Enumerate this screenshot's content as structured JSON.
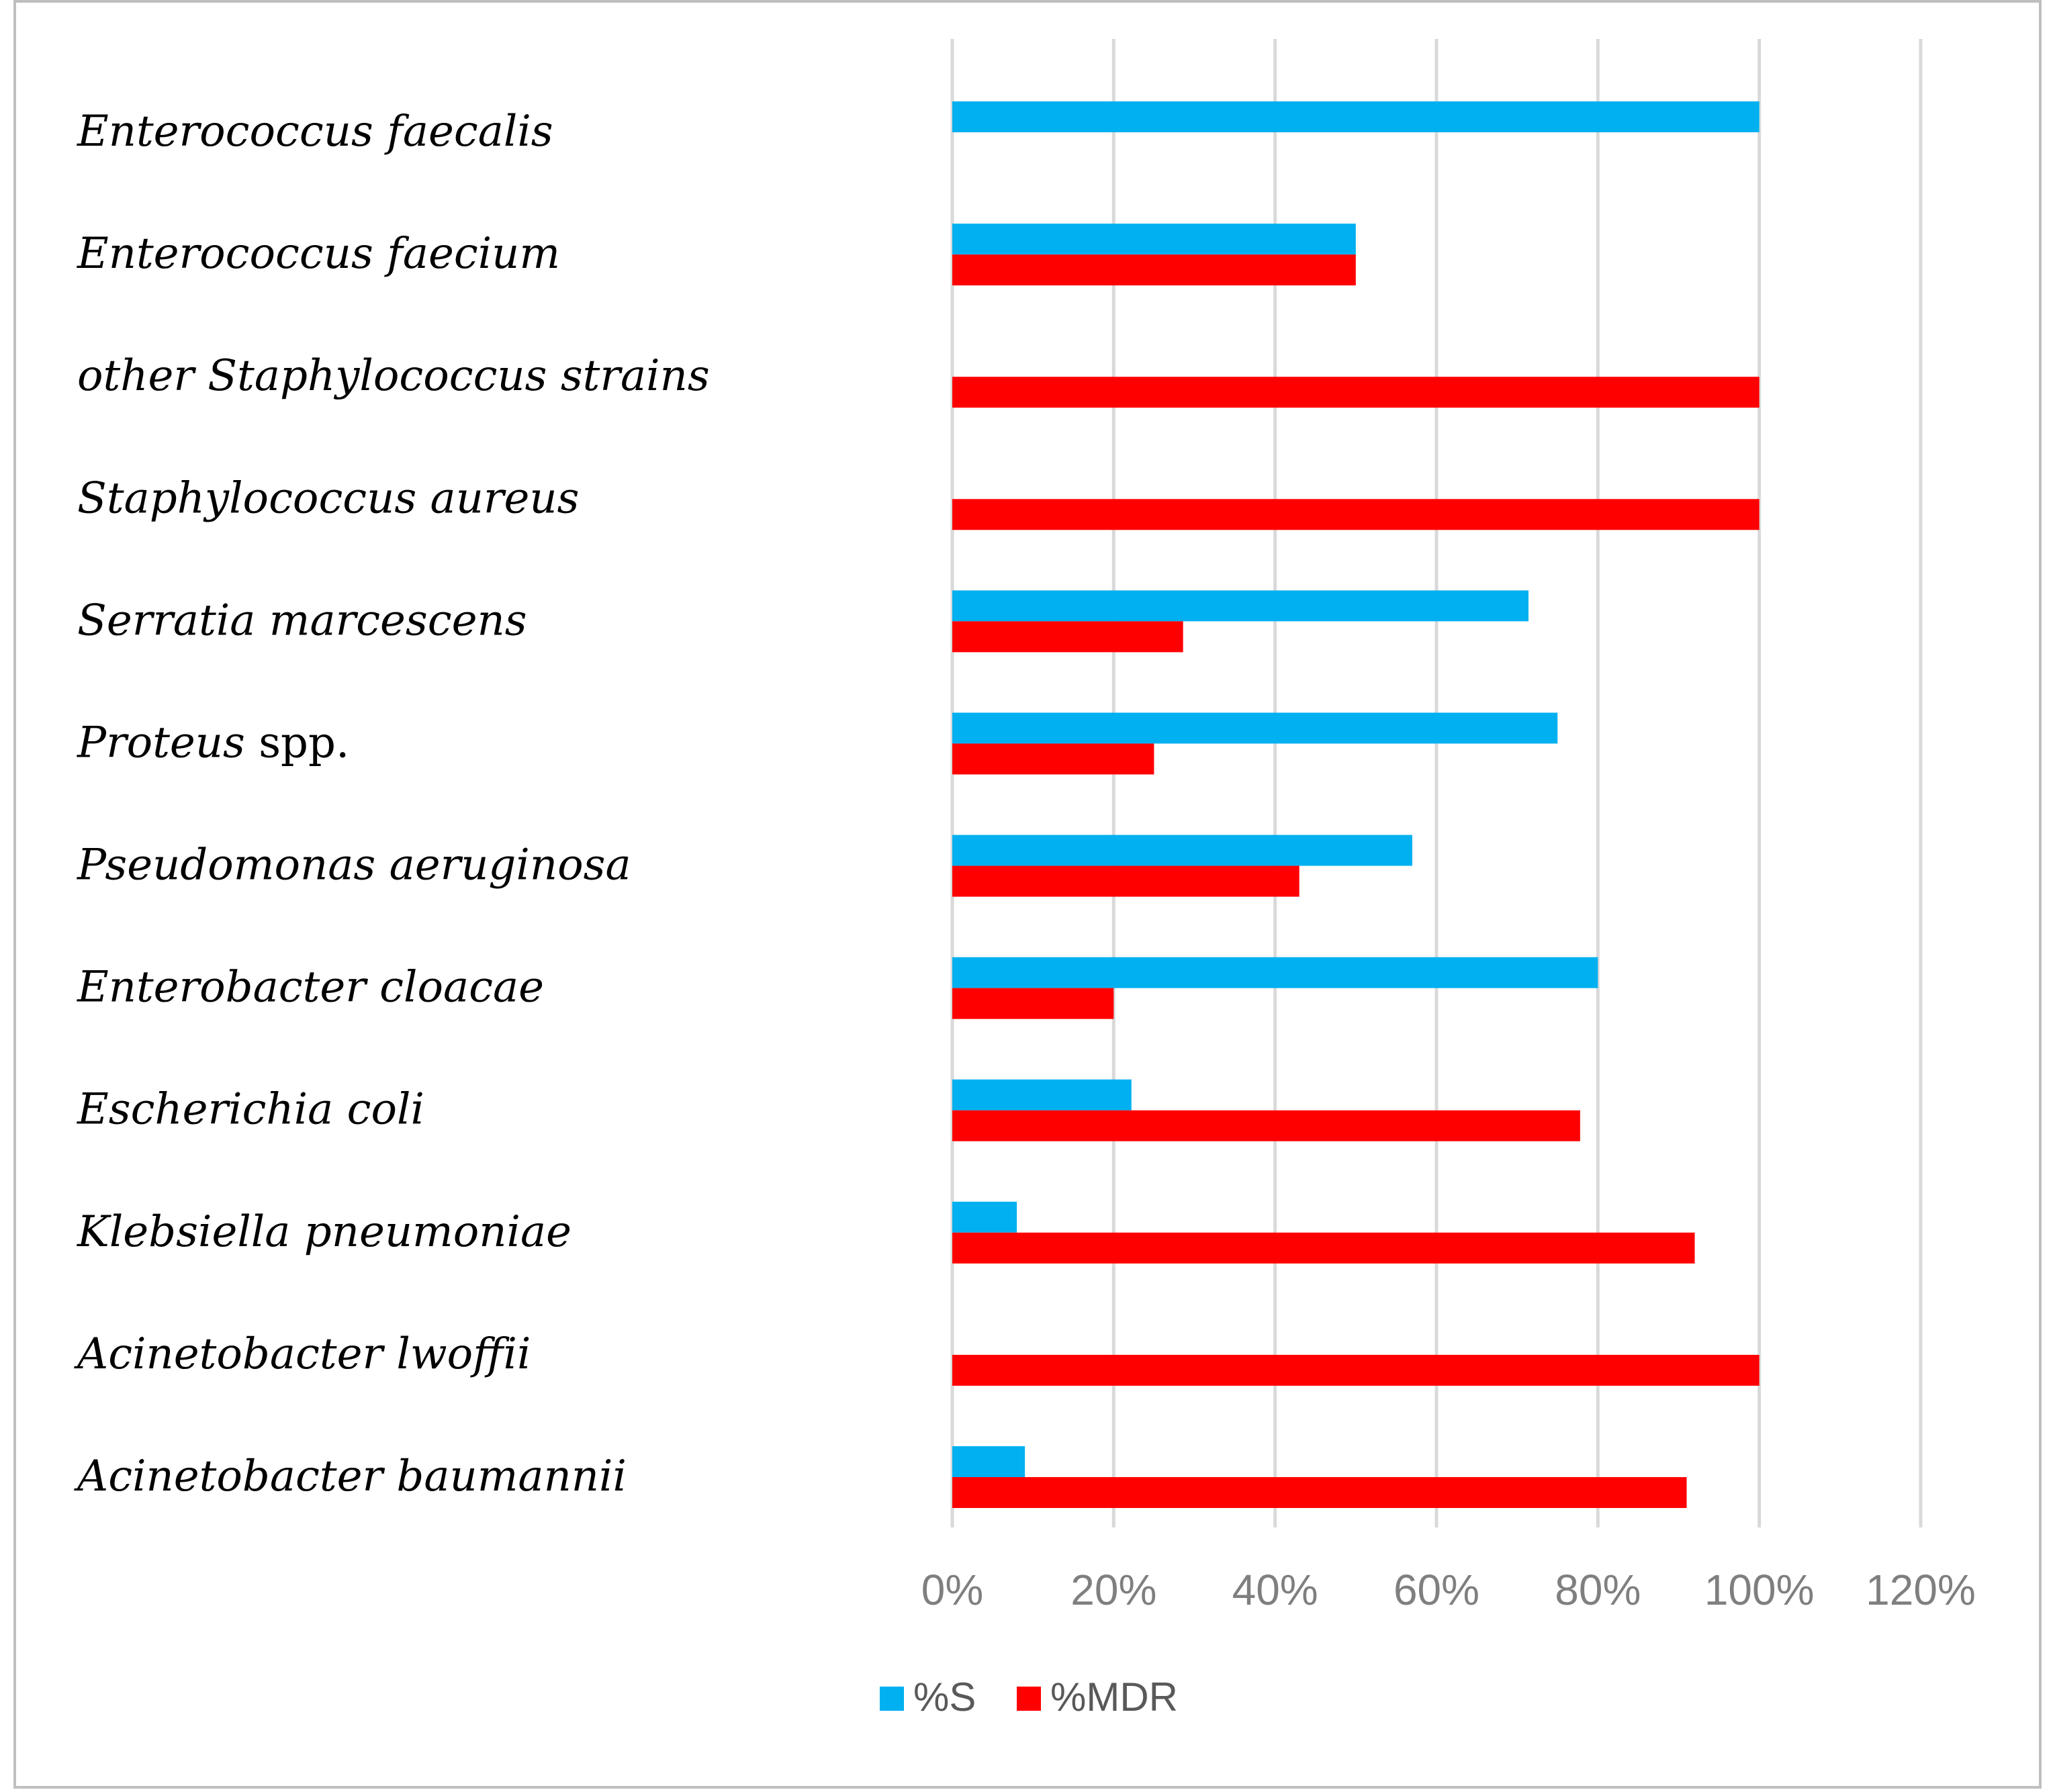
{
  "chart_data": {
    "type": "bar",
    "orientation": "horizontal",
    "categories": [
      {
        "main": "Enterococcus faecalis",
        "suffix": ""
      },
      {
        "main": "Enterococcus faecium",
        "suffix": ""
      },
      {
        "main": "other Staphylococcus strains",
        "suffix": ""
      },
      {
        "main": "Staphylococcus aureus",
        "suffix": ""
      },
      {
        "main": "Serratia marcescens",
        "suffix": ""
      },
      {
        "main": "Proteus",
        "suffix": " spp."
      },
      {
        "main": "Pseudomonas aeruginosa",
        "suffix": ""
      },
      {
        "main": "Enterobacter cloacae",
        "suffix": ""
      },
      {
        "main": "Escherichia coli",
        "suffix": ""
      },
      {
        "main": "Klebsiella pneumoniae",
        "suffix": ""
      },
      {
        "main": "Acinetobacter lwoffii",
        "suffix": ""
      },
      {
        "main": "Acinetobacter baumannii",
        "suffix": ""
      }
    ],
    "series": [
      {
        "name": "%S",
        "color": "#00b0f0",
        "values": [
          100,
          50,
          0,
          0,
          71.4,
          75,
          57,
          80,
          22.2,
          8,
          0,
          9
        ]
      },
      {
        "name": "%MDR",
        "color": "#ff0000",
        "values": [
          0,
          50,
          100,
          100,
          28.6,
          25,
          43,
          20,
          77.8,
          92,
          100,
          91
        ]
      }
    ],
    "xlim": [
      0,
      120
    ],
    "x_ticks": [
      "0%",
      "20%",
      "40%",
      "60%",
      "80%",
      "100%",
      "120%"
    ],
    "grid": true,
    "legend_position": "bottom-center",
    "xlabel": "",
    "ylabel": "",
    "title": ""
  }
}
